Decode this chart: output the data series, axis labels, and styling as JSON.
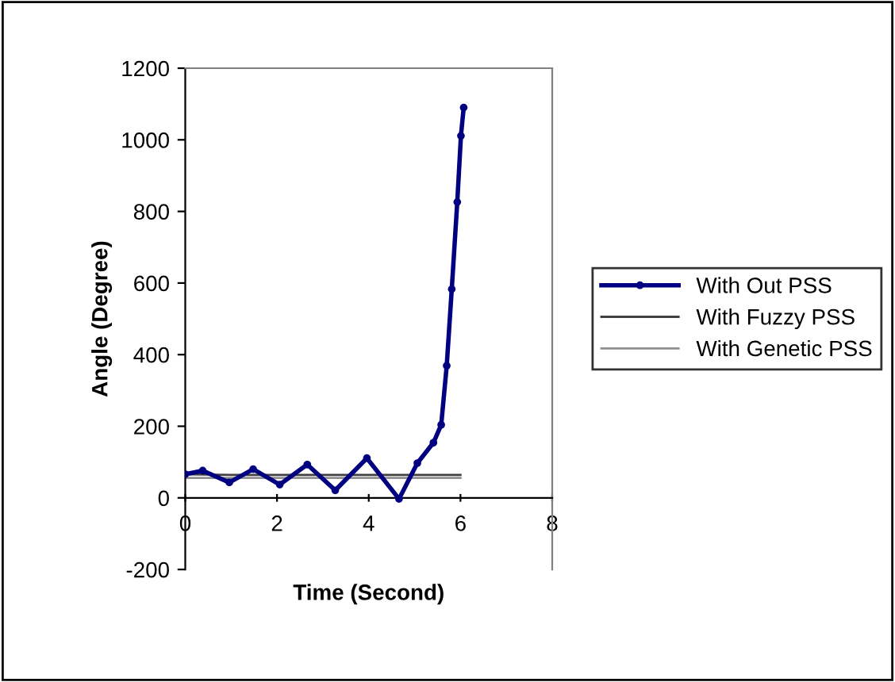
{
  "chart_data": {
    "type": "line",
    "xlabel": "Time (Second)",
    "ylabel": "Angle (Degree)",
    "xlim": [
      0,
      8
    ],
    "xticks": [
      0,
      2,
      4,
      6,
      8
    ],
    "ylim": [
      -200,
      1200
    ],
    "yticks": [
      -200,
      0,
      200,
      400,
      600,
      800,
      1000,
      1200
    ],
    "grid": false,
    "legend": "right",
    "series": [
      {
        "name": "With Out PSS",
        "color": "#000080",
        "marker": "circle",
        "x": [
          0,
          0.38,
          0.96,
          1.48,
          2.06,
          2.66,
          3.27,
          3.96,
          4.66,
          5.06,
          5.41,
          5.58,
          5.7,
          5.81,
          5.93,
          6.01,
          6.07
        ],
        "values": [
          66,
          76,
          43,
          80,
          37,
          93,
          21,
          111,
          -3,
          97,
          154,
          204,
          369,
          583,
          826,
          1011,
          1090
        ]
      },
      {
        "name": "With Fuzzy PSS",
        "color": "#404040",
        "x": [
          0,
          1,
          2,
          3,
          4,
          5,
          6
        ],
        "values": [
          66,
          64,
          64,
          64,
          64,
          64,
          64
        ]
      },
      {
        "name": "With Genetic PSS",
        "color": "#909090",
        "x": [
          0,
          1,
          2,
          3,
          4,
          5,
          6
        ],
        "values": [
          56,
          56,
          56,
          56,
          56,
          56,
          56
        ]
      }
    ]
  }
}
